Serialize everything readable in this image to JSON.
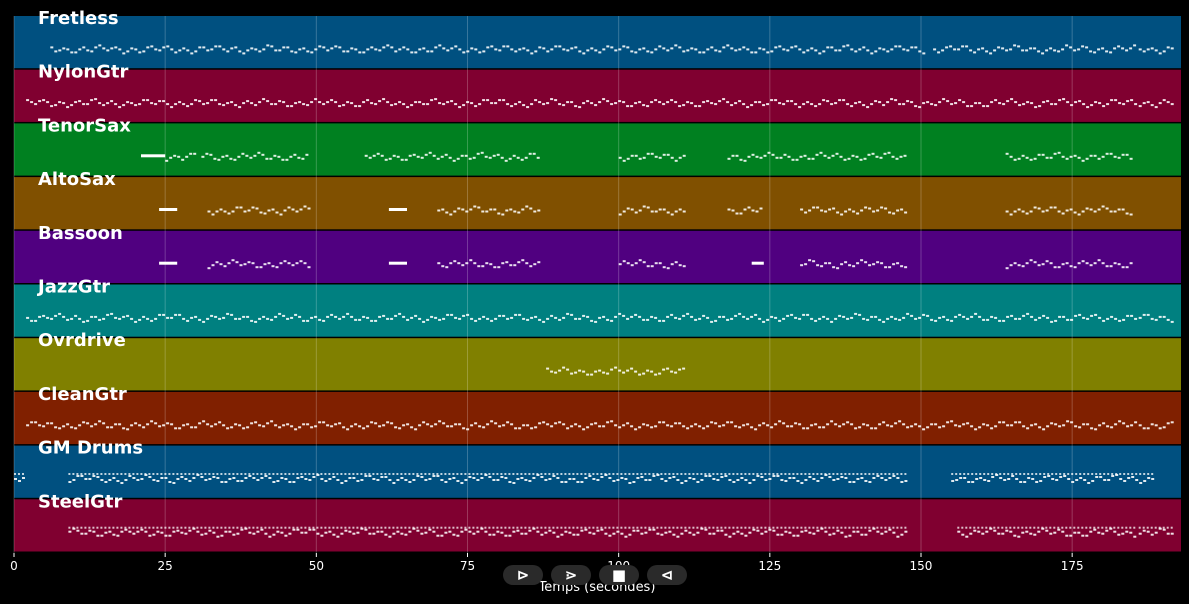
{
  "chart_data": {
    "type": "piano-roll",
    "xlabel": "Temps (secondes)",
    "xlim": [
      0,
      193
    ],
    "xticks": [
      0,
      25,
      50,
      75,
      100,
      125,
      150,
      175
    ],
    "tick_labels": [
      "0",
      "25",
      "50",
      "75",
      "100",
      "125",
      "150",
      "175"
    ],
    "grid": true,
    "tracks": [
      {
        "name": "Fretless",
        "color": "#005080",
        "segments": [
          [
            6,
            151
          ],
          [
            152,
            186
          ],
          [
            186,
            192
          ]
        ]
      },
      {
        "name": "NylonGtr",
        "color": "#800030",
        "segments": [
          [
            2,
            186
          ],
          [
            186,
            192
          ]
        ]
      },
      {
        "name": "TenorSax",
        "color": "#008020",
        "segments": [
          [
            21,
            25
          ],
          [
            25,
            30
          ],
          [
            31,
            49
          ],
          [
            58,
            87
          ],
          [
            100,
            111
          ],
          [
            118,
            148
          ],
          [
            164,
            185
          ]
        ]
      },
      {
        "name": "AltoSax",
        "color": "#805000",
        "segments": [
          [
            24,
            27
          ],
          [
            32,
            49
          ],
          [
            62,
            65
          ],
          [
            70,
            87
          ],
          [
            100,
            111
          ],
          [
            118,
            124
          ],
          [
            130,
            148
          ],
          [
            164,
            185
          ]
        ]
      },
      {
        "name": "Bassoon",
        "color": "#500080",
        "segments": [
          [
            24,
            27
          ],
          [
            32,
            49
          ],
          [
            62,
            65
          ],
          [
            70,
            87
          ],
          [
            100,
            111
          ],
          [
            122,
            124
          ],
          [
            130,
            148
          ],
          [
            164,
            185
          ]
        ]
      },
      {
        "name": "JazzGtr",
        "color": "#008080",
        "segments": [
          [
            2,
            186
          ],
          [
            186,
            192
          ]
        ]
      },
      {
        "name": "Ovrdrive",
        "color": "#808000",
        "segments": [
          [
            88,
            111
          ]
        ]
      },
      {
        "name": "CleanGtr",
        "color": "#802000",
        "segments": [
          [
            2,
            186
          ],
          [
            186,
            192
          ]
        ]
      },
      {
        "name": "GM Drums",
        "color": "#005080",
        "segments": [
          [
            0,
            2
          ],
          [
            9,
            148
          ],
          [
            155,
            189
          ]
        ]
      },
      {
        "name": "SteelGtr",
        "color": "#800030",
        "segments": [
          [
            9,
            148
          ],
          [
            156,
            186
          ],
          [
            186,
            192
          ]
        ]
      }
    ]
  },
  "controls": [
    {
      "name": "play-button",
      "glyph": "⊳"
    },
    {
      "name": "next-button",
      "glyph": "⋗"
    },
    {
      "name": "stop-button",
      "glyph": "■"
    },
    {
      "name": "rewind-button",
      "glyph": "⊲"
    }
  ]
}
